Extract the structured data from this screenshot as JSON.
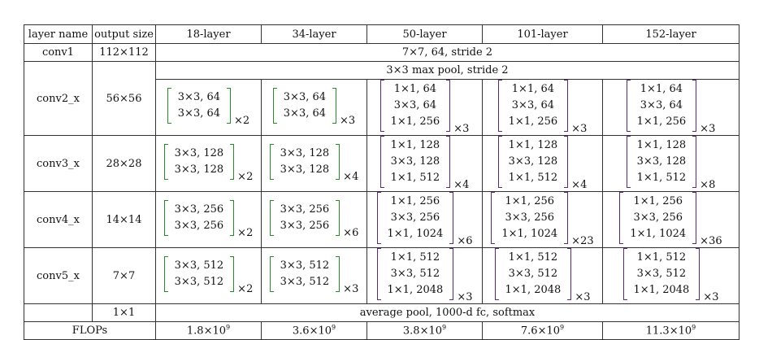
{
  "headers": [
    "layer name",
    "output size",
    "18-layer",
    "34-layer",
    "50-layer",
    "101-layer",
    "152-layer"
  ],
  "conv1": {
    "name": "conv1",
    "size": "112×112",
    "desc": "7×7, 64, stride 2"
  },
  "pool_row": "3×3 max pool, stride 2",
  "conv2": {
    "name": "conv2_x",
    "size": "56×56",
    "cells": [
      {
        "rows": [
          "3×3, 64",
          "3×3, 64"
        ],
        "mult": "×2"
      },
      {
        "rows": [
          "3×3, 64",
          "3×3, 64"
        ],
        "mult": "×3"
      },
      {
        "rows": [
          "1×1, 64",
          "3×3, 64",
          "1×1, 256"
        ],
        "mult": "×3"
      },
      {
        "rows": [
          "1×1, 64",
          "3×3, 64",
          "1×1, 256"
        ],
        "mult": "×3"
      },
      {
        "rows": [
          "1×1, 64",
          "3×3, 64",
          "1×1, 256"
        ],
        "mult": "×3"
      }
    ]
  },
  "conv3": {
    "name": "conv3_x",
    "size": "28×28",
    "cells": [
      {
        "rows": [
          "3×3, 128",
          "3×3, 128"
        ],
        "mult": "×2"
      },
      {
        "rows": [
          "3×3, 128",
          "3×3, 128"
        ],
        "mult": "×4"
      },
      {
        "rows": [
          "1×1, 128",
          "3×3, 128",
          "1×1, 512"
        ],
        "mult": "×4"
      },
      {
        "rows": [
          "1×1, 128",
          "3×3, 128",
          "1×1, 512"
        ],
        "mult": "×4"
      },
      {
        "rows": [
          "1×1, 128",
          "3×3, 128",
          "1×1, 512"
        ],
        "mult": "×8"
      }
    ]
  },
  "conv4": {
    "name": "conv4_x",
    "size": "14×14",
    "cells": [
      {
        "rows": [
          "3×3, 256",
          "3×3, 256"
        ],
        "mult": "×2"
      },
      {
        "rows": [
          "3×3, 256",
          "3×3, 256"
        ],
        "mult": "×6"
      },
      {
        "rows": [
          "1×1, 256",
          "3×3, 256",
          "1×1, 1024"
        ],
        "mult": "×6"
      },
      {
        "rows": [
          "1×1, 256",
          "3×3, 256",
          "1×1, 1024"
        ],
        "mult": "×23"
      },
      {
        "rows": [
          "1×1, 256",
          "3×3, 256",
          "1×1, 1024"
        ],
        "mult": "×36"
      }
    ]
  },
  "conv5": {
    "name": "conv5_x",
    "size": "7×7",
    "cells": [
      {
        "rows": [
          "3×3, 512",
          "3×3, 512"
        ],
        "mult": "×2"
      },
      {
        "rows": [
          "3×3, 512",
          "3×3, 512"
        ],
        "mult": "×3"
      },
      {
        "rows": [
          "1×1, 512",
          "3×3, 512",
          "1×1, 2048"
        ],
        "mult": "×3"
      },
      {
        "rows": [
          "1×1, 512",
          "3×3, 512",
          "1×1, 2048"
        ],
        "mult": "×3"
      },
      {
        "rows": [
          "1×1, 512",
          "3×3, 512",
          "1×1, 2048"
        ],
        "mult": "×3"
      }
    ]
  },
  "final": {
    "size": "1×1",
    "desc": "average pool, 1000-d fc, softmax"
  },
  "flops": {
    "label": "FLOPs",
    "values": [
      {
        "base": "1.8×10",
        "exp": "9"
      },
      {
        "base": "3.6×10",
        "exp": "9"
      },
      {
        "base": "3.8×10",
        "exp": "9"
      },
      {
        "base": "7.6×10",
        "exp": "9"
      },
      {
        "base": "11.3×10",
        "exp": "9"
      }
    ]
  },
  "colors": {
    "basic_block_bracket": "#2a8a2a",
    "bottleneck_bracket": "#5a2a78",
    "border": "#333333"
  }
}
